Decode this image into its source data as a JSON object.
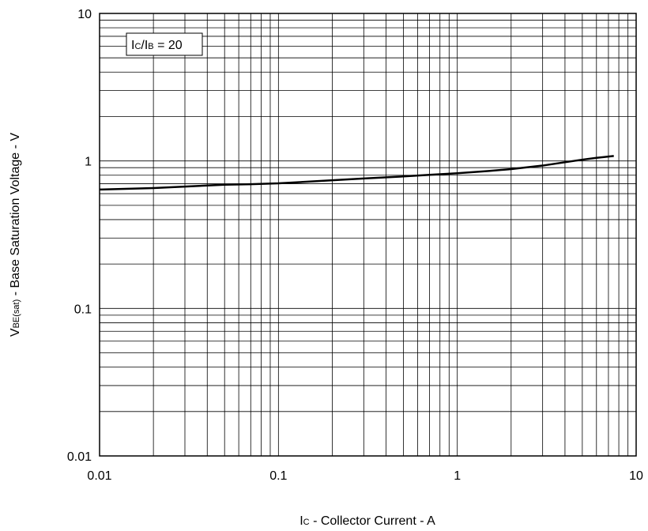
{
  "chart_data": {
    "type": "line",
    "x_scale": "log",
    "y_scale": "log",
    "xlim": [
      0.01,
      10
    ],
    "ylim": [
      0.01,
      10
    ],
    "grid": true,
    "x_ticks": [
      "0.01",
      "0.1",
      "1",
      "10"
    ],
    "y_ticks": [
      "0.01",
      "0.1",
      "1",
      "10"
    ],
    "xlabel": {
      "main": "I",
      "sub": "C",
      "rest": " - Collector Current - A"
    },
    "ylabel": {
      "main": "V",
      "sub": "BE(sat)",
      "rest": " - Base Saturation Voltage - V"
    },
    "annotation": {
      "p1": "I",
      "s1": "C",
      "p2": "/I",
      "s2": "B",
      "p3": " = 20"
    },
    "series": [
      {
        "color": "#000000",
        "x": [
          0.01,
          0.02,
          0.03,
          0.05,
          0.07,
          0.1,
          0.15,
          0.2,
          0.3,
          0.5,
          0.7,
          1,
          1.5,
          2,
          3,
          4,
          5,
          6,
          7.5
        ],
        "y": [
          0.64,
          0.655,
          0.67,
          0.69,
          0.695,
          0.705,
          0.725,
          0.74,
          0.76,
          0.785,
          0.805,
          0.825,
          0.855,
          0.88,
          0.93,
          0.98,
          1.02,
          1.05,
          1.08
        ]
      }
    ]
  }
}
